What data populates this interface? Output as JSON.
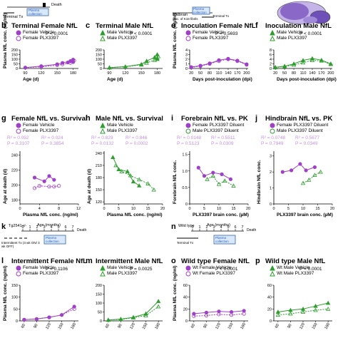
{
  "colors": {
    "female": "#a040c8",
    "male": "#2e9e2e",
    "purple_light": "#c090e0",
    "brain": "#8a68c8"
  },
  "panels": {
    "b": {
      "letter": "b",
      "title": "Terminal Female NfL",
      "stat": "P < 0.0001",
      "legend": [
        "Female Vehicle",
        "Female PLX3397"
      ],
      "xlabel": "Age (d)",
      "ylabel": "Plasma NfL conc. (ng/ml)"
    },
    "c": {
      "letter": "c",
      "title": "Terminal Male NfL",
      "stat": "P < 0.0001",
      "legend": [
        "Male Vehicle",
        "Male PLX3397"
      ],
      "xlabel": "Age (d)"
    },
    "e": {
      "letter": "e",
      "title": "Inoculation Female NfL",
      "stat": "P = 0.5693",
      "legend": [
        "Female Vehicle",
        "Female PLX3397"
      ],
      "xlabel": "Days post-inoculation (dpi)",
      "ylabel": "Plasma NfL conc. (ng/ml)"
    },
    "f": {
      "letter": "f",
      "title": "Inoculation Male NfL",
      "stat": "P < 0.0001",
      "legend": [
        "Male Vehicle",
        "Male PLX3397"
      ],
      "xlabel": "Days post-inoculation (dpi)"
    },
    "g": {
      "letter": "g",
      "title": "Female NfL vs. Survival",
      "legend": [
        "Female Vehicle",
        "Female PLX3397"
      ],
      "r2": [
        "R² = 0.052",
        "R² = 0.024"
      ],
      "p": [
        "P = 0.3107",
        "P = 0.3854"
      ],
      "xlabel": "Plasma NfL conc. (ng/ml)",
      "ylabel": "Age at death (d)"
    },
    "h": {
      "letter": "h",
      "title": "Male NfL vs. Survival",
      "legend": [
        "Male Vehicle",
        "Male PLX3397"
      ],
      "r2": [
        "R² = 0.829",
        "R² = 0.846"
      ],
      "p": [
        "P = 0.0132",
        "P = 0.0002"
      ],
      "xlabel": "Plasma NfL conc. (ng/ml)",
      "ylabel": "Age at death (d)"
    },
    "i": {
      "letter": "i",
      "title": "Forebrain NfL vs. PK",
      "legend": [
        "Female PLX3397 Diluent",
        "Male PLX3397 Diluent"
      ],
      "r2": [
        "R² = 0.0148",
        "R² = 0.5511"
      ],
      "p": [
        "P = 0.5123",
        "P = 0.0309"
      ],
      "xlabel": "PLX3397 brain conc. (µM)",
      "ylabel": "Forebrain NfL conc."
    },
    "j": {
      "letter": "j",
      "title": "Hindbrain NfL vs. PK",
      "legend": [
        "Female PLX3397 Diluent",
        "Male PLX3397 Diluent"
      ],
      "r2": [
        "R² = 0.0748",
        "R² = 0.5677"
      ],
      "p": [
        "P = 0.7949",
        "P = 0.0349"
      ],
      "xlabel": "PLX3397 brain conc. (µM)",
      "ylabel": "Hindbrain NfL conc."
    },
    "l": {
      "letter": "l",
      "title": "Intermittent Female NfL",
      "stat": "P = 0.1106",
      "legend": [
        "Female Vehicle",
        "Female PLX3397"
      ],
      "ylabel": "Plasma NfL conc. (ng/ml)"
    },
    "m": {
      "letter": "m",
      "title": "Intermittent Male NfL",
      "stat": "P = 0.0025",
      "legend": [
        "Male Vehicle",
        "Male PLX3397"
      ]
    },
    "o": {
      "letter": "o",
      "title": "Wild type Female NfL",
      "stat": "P < 0.0001",
      "legend": [
        "Wt Female Vehicle",
        "Wt Female PLX3397"
      ],
      "ylabel": "Plasma NfL conc. (ng/ml)"
    },
    "p": {
      "letter": "p",
      "title": "Wild type Male NfL",
      "stat": "P < 0.0001",
      "legend": [
        "Wt Male Vehicle",
        "Wt Male PLX3397"
      ]
    }
  },
  "schematics": {
    "top_left": {
      "terminal_tx": "Terminal Tx",
      "plasma": "Plasma collection",
      "death": "Death"
    },
    "top_mid": {
      "midbrain": "Midbrain",
      "inoc": "inoc. of K18 fibrils",
      "terminal_tx": "Terminal Tx",
      "plasma": "Plasma collection"
    },
    "k": {
      "letter": "k",
      "mouse": "Tg2541+/-",
      "age": "Age (months)",
      "ticks": [
        "0",
        "1",
        "2",
        "3",
        "4",
        "5",
        "6",
        "7"
      ],
      "death": "Death",
      "tx": "Intermittent Tx (3 wk ON/ 3 wk OFF)",
      "plasma": "Plasma collection"
    },
    "n": {
      "letter": "n",
      "mouse": "Wild type",
      "age": "Age (months)",
      "ticks": [
        "0",
        "1",
        "2",
        "3",
        "4",
        "5",
        "6",
        "7"
      ],
      "death": "Death",
      "tx": "Terminal Tx",
      "plasma": "Plasma collection"
    }
  },
  "chart_data": [
    {
      "type": "scatter",
      "panel": "b",
      "x_ticks": [
        "90",
        "120",
        "150",
        "180"
      ],
      "y_ticks": [
        "0",
        "50",
        "100",
        "150",
        "200"
      ],
      "ylim": [
        0,
        200
      ],
      "xlim": [
        80,
        190
      ],
      "series": [
        {
          "name": "Female Vehicle",
          "points": [
            [
              90,
              10
            ],
            [
              120,
              25
            ],
            [
              150,
              45
            ],
            [
              160,
              60
            ],
            [
              175,
              80
            ],
            [
              180,
              95
            ],
            [
              180,
              70
            ],
            [
              170,
              65
            ]
          ]
        },
        {
          "name": "Female PLX3397",
          "points": [
            [
              90,
              8
            ],
            [
              120,
              18
            ],
            [
              150,
              35
            ],
            [
              160,
              45
            ],
            [
              175,
              60
            ],
            [
              180,
              70
            ],
            [
              182,
              85
            ]
          ]
        }
      ]
    },
    {
      "type": "scatter",
      "panel": "c",
      "x_ticks": [
        "90",
        "120",
        "150",
        "180"
      ],
      "y_ticks": [
        "0",
        "50",
        "100",
        "150",
        "200"
      ],
      "ylim": [
        0,
        200
      ],
      "xlim": [
        80,
        190
      ],
      "series": [
        {
          "name": "Male Vehicle",
          "points": [
            [
              90,
              10
            ],
            [
              120,
              20
            ],
            [
              150,
              45
            ],
            [
              160,
              80
            ],
            [
              175,
              120
            ],
            [
              180,
              150
            ],
            [
              180,
              100
            ]
          ]
        },
        {
          "name": "Male PLX3397",
          "points": [
            [
              90,
              8
            ],
            [
              120,
              18
            ],
            [
              150,
              40
            ],
            [
              160,
              60
            ],
            [
              175,
              90
            ],
            [
              180,
              110
            ],
            [
              182,
              130
            ]
          ]
        }
      ]
    },
    {
      "type": "scatter",
      "panel": "e",
      "x_ticks": [
        "20",
        "50",
        "80",
        "110",
        "140",
        "170",
        "200"
      ],
      "y_ticks": [
        "0",
        "1",
        "2",
        "3",
        "4"
      ],
      "ylim": [
        0,
        4
      ],
      "xlim": [
        15,
        205
      ],
      "series": [
        {
          "name": "Female Vehicle",
          "points": [
            [
              20,
              0.3
            ],
            [
              50,
              0.6
            ],
            [
              80,
              1.1
            ],
            [
              110,
              1.8
            ],
            [
              140,
              2.1
            ],
            [
              170,
              1.7
            ],
            [
              200,
              0.9
            ]
          ]
        },
        {
          "name": "Female PLX3397",
          "points": [
            [
              20,
              0.2
            ],
            [
              50,
              0.5
            ],
            [
              80,
              1.0
            ],
            [
              110,
              1.6
            ],
            [
              140,
              2.0
            ],
            [
              170,
              1.6
            ],
            [
              200,
              0.8
            ]
          ]
        }
      ]
    },
    {
      "type": "scatter",
      "panel": "f",
      "x_ticks": [
        "20",
        "50",
        "80",
        "110",
        "140",
        "170",
        "200"
      ],
      "y_ticks": [
        "0",
        "2",
        "4",
        "6",
        "8"
      ],
      "ylim": [
        0,
        8
      ],
      "xlim": [
        15,
        205
      ],
      "series": [
        {
          "name": "Male Vehicle",
          "points": [
            [
              20,
              0.5
            ],
            [
              50,
              1
            ],
            [
              80,
              2
            ],
            [
              110,
              3.5
            ],
            [
              140,
              4.3
            ],
            [
              170,
              3.6
            ],
            [
              200,
              2
            ]
          ]
        },
        {
          "name": "Male PLX3397",
          "points": [
            [
              20,
              0.4
            ],
            [
              50,
              0.8
            ],
            [
              80,
              1.5
            ],
            [
              110,
              2.5
            ],
            [
              140,
              3.5
            ],
            [
              170,
              3.3
            ],
            [
              200,
              1.8
            ]
          ]
        }
      ]
    },
    {
      "type": "scatter",
      "panel": "g",
      "x_ticks": [
        "0",
        "4",
        "8",
        "12"
      ],
      "y_ticks": [
        "180",
        "200",
        "220",
        "240"
      ],
      "ylim": [
        175,
        245
      ],
      "xlim": [
        0,
        12
      ],
      "series": [
        {
          "name": "Female Vehicle",
          "points": [
            [
              3,
              210
            ],
            [
              5,
              205
            ],
            [
              6,
              212
            ],
            [
              7,
              207
            ]
          ]
        },
        {
          "name": "Female PLX3397",
          "points": [
            [
              3,
              196
            ],
            [
              4,
              199
            ],
            [
              6,
              198
            ],
            [
              7,
              198
            ],
            [
              8,
              199
            ]
          ]
        }
      ]
    },
    {
      "type": "scatter",
      "panel": "h",
      "x_ticks": [
        "0",
        "5",
        "10",
        "15",
        "20"
      ],
      "y_ticks": [
        "120",
        "150",
        "180",
        "210",
        "240"
      ],
      "ylim": [
        115,
        245
      ],
      "xlim": [
        0,
        20
      ],
      "series": [
        {
          "name": "Male Vehicle",
          "points": [
            [
              3,
              230
            ],
            [
              5,
              200
            ],
            [
              8,
              195
            ],
            [
              10,
              170
            ],
            [
              12,
              160
            ]
          ]
        },
        {
          "name": "Male PLX3397",
          "points": [
            [
              4,
              210
            ],
            [
              6,
              195
            ],
            [
              9,
              185
            ],
            [
              12,
              175
            ],
            [
              15,
              165
            ],
            [
              17,
              150
            ]
          ]
        }
      ]
    },
    {
      "type": "scatter",
      "panel": "i",
      "x_ticks": [
        "0",
        "5",
        "10",
        "15",
        "20"
      ],
      "y_ticks": [
        "0",
        "0.5",
        "1.0",
        "1.5"
      ],
      "ylim": [
        0,
        1.6
      ],
      "xlim": [
        0,
        20
      ],
      "series": [
        {
          "name": "Female PLX3397 Diluent",
          "points": [
            [
              3,
              1.1
            ],
            [
              5,
              0.85
            ],
            [
              8,
              0.95
            ],
            [
              11,
              0.9
            ],
            [
              14,
              0.75
            ]
          ]
        },
        {
          "name": "Male PLX3397 Diluent",
          "points": [
            [
              6,
              0.75
            ],
            [
              8,
              0.85
            ],
            [
              10,
              0.6
            ],
            [
              12,
              0.7
            ],
            [
              15,
              0.55
            ]
          ]
        }
      ]
    },
    {
      "type": "scatter",
      "panel": "j",
      "x_ticks": [
        "0",
        "5",
        "10",
        "15",
        "20"
      ],
      "y_ticks": [
        "0",
        "1",
        "2",
        "3"
      ],
      "ylim": [
        0,
        3.3
      ],
      "xlim": [
        0,
        20
      ],
      "series": [
        {
          "name": "Female PLX3397 Diluent",
          "points": [
            [
              3,
              2.0
            ],
            [
              6,
              2.1
            ],
            [
              9,
              2.5
            ],
            [
              11,
              2.1
            ],
            [
              14,
              2.3
            ]
          ]
        },
        {
          "name": "Male PLX3397 Diluent",
          "points": [
            [
              10,
              1.3
            ],
            [
              12,
              1.5
            ],
            [
              14,
              1.8
            ],
            [
              16,
              2.0
            ]
          ]
        }
      ]
    },
    {
      "type": "scatter",
      "panel": "l",
      "x_ticks": [
        "60",
        "90",
        "120",
        "150",
        "180"
      ],
      "y_ticks": [
        "0",
        "50",
        "100",
        "150"
      ],
      "ylim": [
        0,
        150
      ],
      "xlim": [
        50,
        190
      ],
      "series": [
        {
          "name": "Female Vehicle",
          "points": [
            [
              60,
              5
            ],
            [
              90,
              8
            ],
            [
              120,
              15
            ],
            [
              150,
              25
            ],
            [
              180,
              60
            ]
          ]
        },
        {
          "name": "Female PLX3397",
          "points": [
            [
              60,
              5
            ],
            [
              90,
              8
            ],
            [
              120,
              15
            ],
            [
              150,
              25
            ],
            [
              180,
              50
            ]
          ]
        }
      ]
    },
    {
      "type": "scatter",
      "panel": "m",
      "x_ticks": [
        "60",
        "90",
        "120",
        "150",
        "180"
      ],
      "y_ticks": [
        "0",
        "50",
        "100",
        "150",
        "200"
      ],
      "ylim": [
        0,
        200
      ],
      "xlim": [
        50,
        190
      ],
      "series": [
        {
          "name": "Male Vehicle",
          "points": [
            [
              60,
              5
            ],
            [
              90,
              10
            ],
            [
              120,
              20
            ],
            [
              150,
              40
            ],
            [
              180,
              110
            ]
          ]
        },
        {
          "name": "Male PLX3397",
          "points": [
            [
              60,
              5
            ],
            [
              90,
              8
            ],
            [
              120,
              18
            ],
            [
              150,
              30
            ],
            [
              180,
              80
            ]
          ]
        }
      ]
    },
    {
      "type": "scatter",
      "panel": "o",
      "x_ticks": [
        "60",
        "90",
        "120",
        "150",
        "180"
      ],
      "y_ticks": [
        "0",
        "20",
        "40",
        "60"
      ],
      "ylim": [
        0,
        60
      ],
      "xlim": [
        50,
        190
      ],
      "series": [
        {
          "name": "Wt Female Vehicle",
          "points": [
            [
              60,
              12
            ],
            [
              90,
              14
            ],
            [
              120,
              16
            ],
            [
              150,
              15
            ],
            [
              180,
              17
            ]
          ]
        },
        {
          "name": "Wt Female PLX3397",
          "points": [
            [
              60,
              8
            ],
            [
              90,
              9
            ],
            [
              120,
              11
            ],
            [
              150,
              10
            ],
            [
              180,
              12
            ]
          ]
        }
      ]
    },
    {
      "type": "scatter",
      "panel": "p",
      "x_ticks": [
        "60",
        "90",
        "120",
        "150",
        "180"
      ],
      "y_ticks": [
        "0",
        "20",
        "40",
        "60"
      ],
      "ylim": [
        0,
        60
      ],
      "xlim": [
        50,
        190
      ],
      "series": [
        {
          "name": "Wt Male Vehicle",
          "points": [
            [
              60,
              15
            ],
            [
              90,
              18
            ],
            [
              120,
              20
            ],
            [
              150,
              25
            ],
            [
              180,
              30
            ]
          ]
        },
        {
          "name": "Wt Male PLX3397",
          "points": [
            [
              60,
              10
            ],
            [
              90,
              12
            ],
            [
              120,
              15
            ],
            [
              150,
              18
            ],
            [
              180,
              20
            ]
          ]
        }
      ]
    }
  ]
}
